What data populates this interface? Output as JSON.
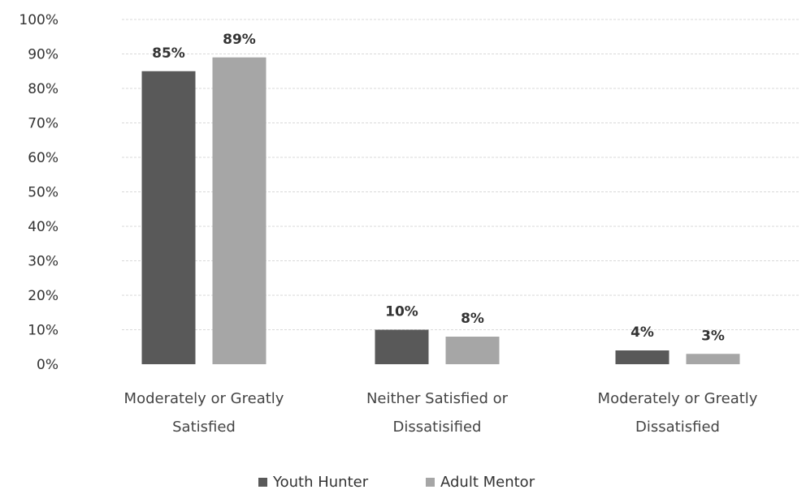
{
  "chart_data": {
    "type": "bar",
    "categories": [
      [
        "Moderately or Greatly",
        "Satisfied"
      ],
      [
        "Neither Satisfied or",
        "Dissatisified"
      ],
      [
        "Moderately or Greatly",
        "Dissatisfied"
      ]
    ],
    "series": [
      {
        "name": "Youth Hunter",
        "values": [
          85,
          10,
          4
        ],
        "labels": [
          "85%",
          "10%",
          "4%"
        ],
        "color": "#595959"
      },
      {
        "name": "Adult Mentor",
        "values": [
          89,
          8,
          3
        ],
        "labels": [
          "89%",
          "8%",
          "3%"
        ],
        "color": "#a6a6a6"
      }
    ],
    "y_ticks": [
      "0%",
      "10%",
      "20%",
      "30%",
      "40%",
      "50%",
      "60%",
      "70%",
      "80%",
      "90%",
      "100%"
    ],
    "ylim": [
      0,
      100
    ],
    "grid": true,
    "legend_position": "bottom",
    "title": "",
    "xlabel": "",
    "ylabel": ""
  }
}
